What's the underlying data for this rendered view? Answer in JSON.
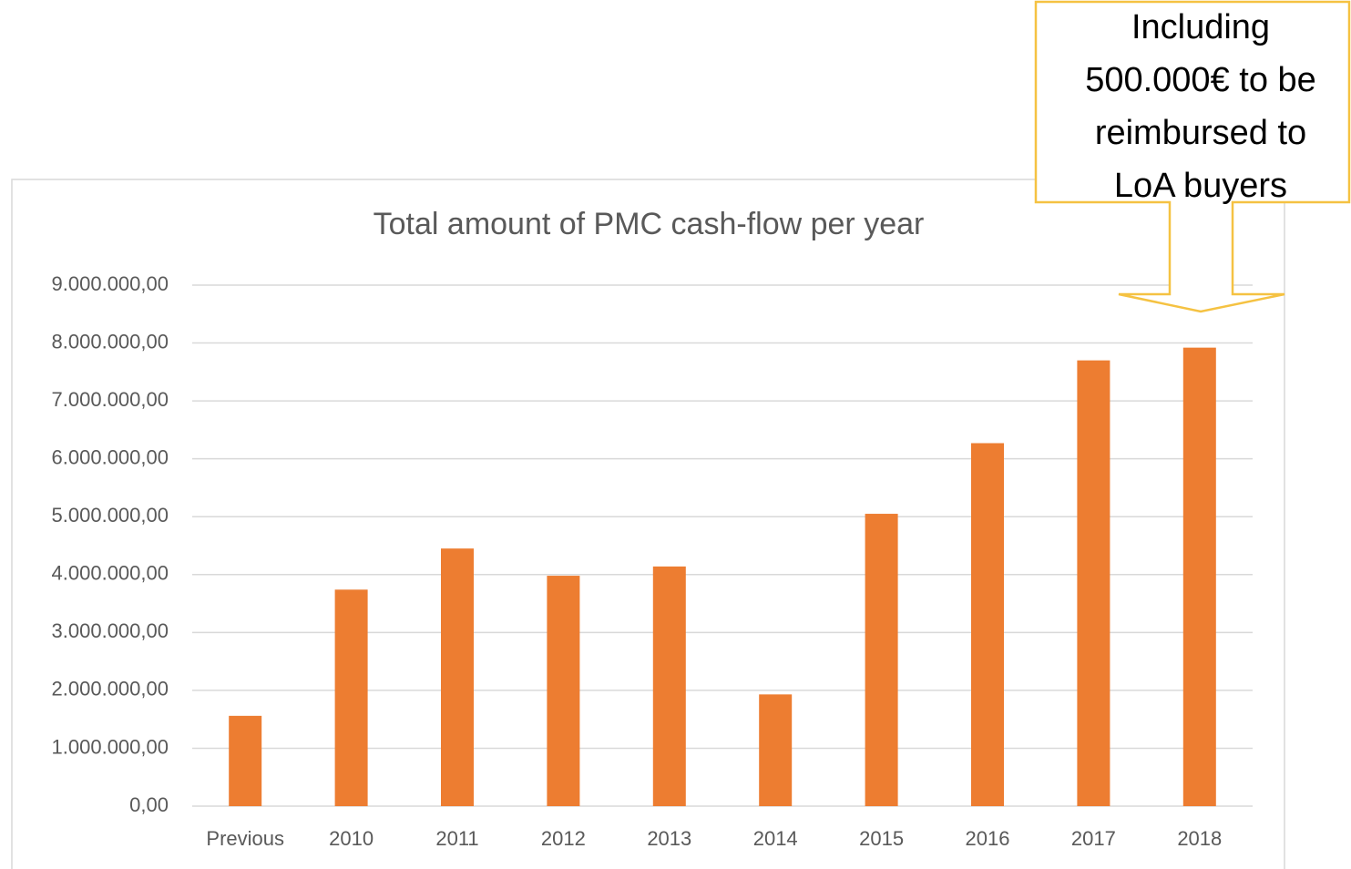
{
  "chart_data": {
    "type": "bar",
    "title": "Total amount of PMC cash-flow per year",
    "categories": [
      "Previous",
      "2010",
      "2011",
      "2012",
      "2013",
      "2014",
      "2015",
      "2016",
      "2017",
      "2018"
    ],
    "values": [
      1560000,
      3740000,
      4450000,
      3980000,
      4140000,
      1930000,
      5050000,
      6270000,
      7700000,
      7920000
    ],
    "color": "#ed7d31",
    "ylim": [
      0,
      9000000
    ],
    "yticks": [
      {
        "value": 0,
        "label": "0,00"
      },
      {
        "value": 1000000,
        "label": "1.000.000,00"
      },
      {
        "value": 2000000,
        "label": "2.000.000,00"
      },
      {
        "value": 3000000,
        "label": "3.000.000,00"
      },
      {
        "value": 4000000,
        "label": "4.000.000,00"
      },
      {
        "value": 5000000,
        "label": "5.000.000,00"
      },
      {
        "value": 6000000,
        "label": "6.000.000,00"
      },
      {
        "value": 7000000,
        "label": "7.000.000,00"
      },
      {
        "value": 8000000,
        "label": "8.000.000,00"
      },
      {
        "value": 9000000,
        "label": "9.000.000,00"
      }
    ],
    "grid": true,
    "annotation": [
      "Including",
      "500.000€ to be",
      "reimbursed to",
      "LoA buyers"
    ]
  }
}
